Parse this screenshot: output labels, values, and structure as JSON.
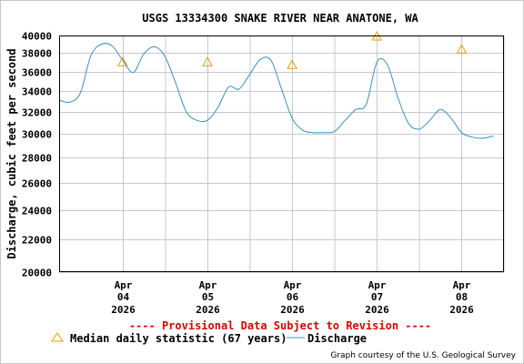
{
  "chart_data": {
    "type": "line",
    "title": "USGS 13334300 SNAKE RIVER NEAR ANATONE, WA",
    "ylabel": "Discharge, cubic feet per second",
    "xlabel": "",
    "ylim": [
      20000,
      40000
    ],
    "xlim": [
      "2026-04-03 06:00",
      "2026-04-08 12:00"
    ],
    "y_scale": "log",
    "grid": true,
    "y_ticks": [
      {
        "value": 20000,
        "label": "20000"
      },
      {
        "value": 22000,
        "label": "22000"
      },
      {
        "value": 24000,
        "label": "24000"
      },
      {
        "value": 26000,
        "label": "26000"
      },
      {
        "value": 28000,
        "label": "28000"
      },
      {
        "value": 30000,
        "label": "30000"
      },
      {
        "value": 32000,
        "label": "32000"
      },
      {
        "value": 34000,
        "label": "34000"
      },
      {
        "value": 36000,
        "label": "36000"
      },
      {
        "value": 38000,
        "label": "38000"
      },
      {
        "value": 40000,
        "label": "40000"
      }
    ],
    "x_ticks": [
      {
        "value": "2026-04-04 00:00",
        "month": "Apr",
        "day": "04",
        "year": "2026"
      },
      {
        "value": "2026-04-05 00:00",
        "month": "Apr",
        "day": "05",
        "year": "2026"
      },
      {
        "value": "2026-04-06 00:00",
        "month": "Apr",
        "day": "06",
        "year": "2026"
      },
      {
        "value": "2026-04-07 00:00",
        "month": "Apr",
        "day": "07",
        "year": "2026"
      },
      {
        "value": "2026-04-08 00:00",
        "month": "Apr",
        "day": "08",
        "year": "2026"
      }
    ],
    "series": [
      {
        "name": "Discharge",
        "color": "#3a8fc0",
        "x": [
          "2026-04-03 06:00",
          "2026-04-03 09:00",
          "2026-04-03 12:00",
          "2026-04-03 15:00",
          "2026-04-03 18:00",
          "2026-04-03 21:00",
          "2026-04-04 00:00",
          "2026-04-04 03:00",
          "2026-04-04 06:00",
          "2026-04-04 09:00",
          "2026-04-04 12:00",
          "2026-04-04 15:00",
          "2026-04-04 18:00",
          "2026-04-04 21:00",
          "2026-04-05 00:00",
          "2026-04-05 03:00",
          "2026-04-05 06:00",
          "2026-04-05 09:00",
          "2026-04-05 12:00",
          "2026-04-05 15:00",
          "2026-04-05 18:00",
          "2026-04-05 21:00",
          "2026-04-06 00:00",
          "2026-04-06 03:00",
          "2026-04-06 06:00",
          "2026-04-06 09:00",
          "2026-04-06 12:00",
          "2026-04-06 15:00",
          "2026-04-06 18:00",
          "2026-04-06 21:00",
          "2026-04-07 00:00",
          "2026-04-07 03:00",
          "2026-04-07 06:00",
          "2026-04-07 09:00",
          "2026-04-07 12:00",
          "2026-04-07 15:00",
          "2026-04-07 18:00",
          "2026-04-07 21:00",
          "2026-04-08 00:00",
          "2026-04-08 03:00",
          "2026-04-08 06:00",
          "2026-04-08 09:00"
        ],
        "values": [
          33100,
          32900,
          33800,
          37700,
          39000,
          38800,
          37200,
          35900,
          37900,
          38700,
          37600,
          34800,
          32000,
          31200,
          31200,
          32400,
          34400,
          34200,
          35700,
          37300,
          37200,
          34200,
          31400,
          30300,
          30100,
          30100,
          30200,
          31200,
          32200,
          32700,
          37000,
          36700,
          33300,
          30900,
          30400,
          31200,
          32200,
          31400,
          30100,
          29700,
          29600,
          29800
        ]
      }
    ],
    "markers": {
      "name": "Median daily statistic (67 years)",
      "color": "#e0a000",
      "x": [
        "2026-04-04 00:00",
        "2026-04-05 00:00",
        "2026-04-06 00:00",
        "2026-04-07 00:00",
        "2026-04-08 00:00"
      ],
      "values": [
        37000,
        37000,
        36700,
        39900,
        38400
      ]
    },
    "annotation": "---- Provisional Data Subject to Revision ----",
    "credit": "Graph courtesy of the U.S. Geological Survey"
  }
}
